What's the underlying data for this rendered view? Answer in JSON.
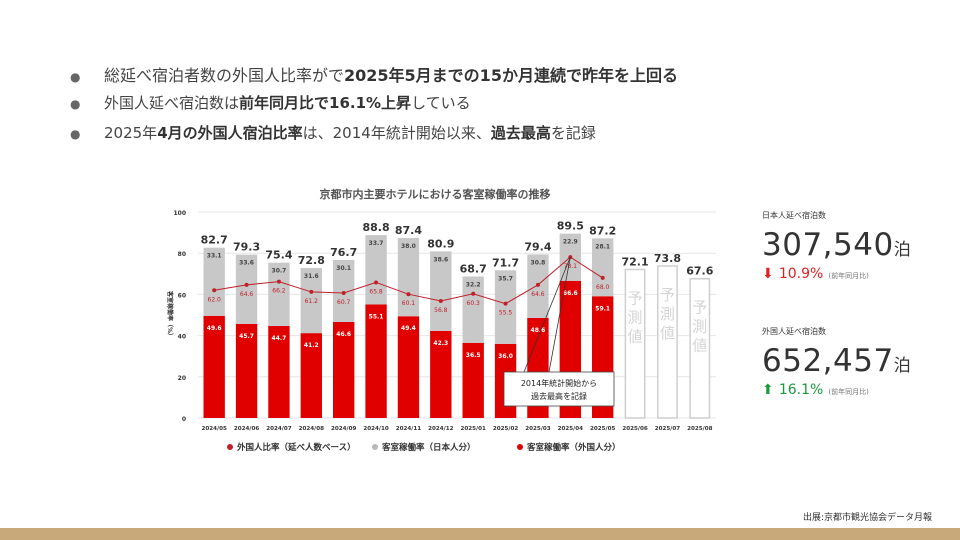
{
  "bullets": [
    {
      "plain": "総延べ宿泊者数の外国人比率がで",
      "bold": "2025年5月までの15か月連続で昨年を上回る",
      "tail": ""
    },
    {
      "plain": "外国人延べ宿泊数は",
      "bold": "前年同月比で16.1%上昇",
      "tail": "している"
    },
    {
      "plain": "2025年",
      "bold": "4月の外国人宿泊比率",
      "tail": "は、2014年統計開始以来、",
      "bold2": "過去最高",
      "tail2": "を記録"
    }
  ],
  "stats": [
    {
      "label": "日本人延べ宿泊数",
      "value": "307,540",
      "unit": "泊",
      "change": "10.9%",
      "arrow": "down",
      "note": "(前年同月比)",
      "color": "#e02020"
    },
    {
      "label": "外国人延べ宿泊数",
      "value": "652,457",
      "unit": "泊",
      "change": "16.1%",
      "arrow": "up",
      "note": "(前年同月比)",
      "color": "#1a9a3a"
    }
  ],
  "source": "出展:京都市観光協会データ月報",
  "colors": {
    "red": "#e00000",
    "gray": "#c8c8c8",
    "line": "#c0202a",
    "text": "#333333"
  },
  "chart_data": {
    "type": "bar",
    "title": "京都市内主要ホテルにおける客室稼働率の推移",
    "ylabel": "客室稼働率（%）",
    "ylim": [
      0,
      100
    ],
    "yticks": [
      0,
      20,
      40,
      60,
      80,
      100
    ],
    "categories": [
      "2024/05",
      "2024/06",
      "2024/07",
      "2024/08",
      "2024/09",
      "2024/10",
      "2024/11",
      "2024/12",
      "2025/01",
      "2025/02",
      "2025/03",
      "2025/04",
      "2025/05",
      "2025/06",
      "2025/07",
      "2025/08"
    ],
    "totals": [
      82.7,
      79.3,
      75.4,
      72.8,
      76.7,
      88.8,
      87.4,
      80.9,
      68.7,
      71.7,
      79.4,
      89.5,
      87.2,
      null,
      null,
      null
    ],
    "series": [
      {
        "name": "客室稼働率（外国人分）",
        "type": "bar",
        "values": [
          49.6,
          45.7,
          44.7,
          41.2,
          46.6,
          55.1,
          49.4,
          42.3,
          36.5,
          36.0,
          48.6,
          66.6,
          59.1,
          null,
          null,
          null
        ]
      },
      {
        "name": "客室稼働率（日本人分）",
        "type": "bar",
        "values": [
          33.1,
          33.6,
          30.7,
          31.6,
          30.1,
          33.7,
          38.0,
          38.6,
          32.2,
          35.7,
          30.8,
          22.9,
          28.1,
          null,
          null,
          null
        ]
      },
      {
        "name": "外国人比率（延べ人数ベース）",
        "type": "line",
        "values": [
          62.0,
          64.6,
          66.2,
          61.2,
          60.7,
          65.8,
          60.1,
          56.8,
          60.3,
          55.5,
          64.6,
          78.1,
          68.0,
          null,
          null,
          null
        ]
      }
    ],
    "forecast": {
      "values": [
        null,
        null,
        null,
        null,
        null,
        null,
        null,
        null,
        null,
        null,
        null,
        null,
        null,
        72.1,
        73.8,
        67.6
      ],
      "label": [
        "予",
        "測",
        "値"
      ]
    },
    "annotation": {
      "line1": "2014年統計開始から",
      "line2": "過去最高を記録",
      "category": "2025/04"
    },
    "legend_position": "bottom"
  }
}
